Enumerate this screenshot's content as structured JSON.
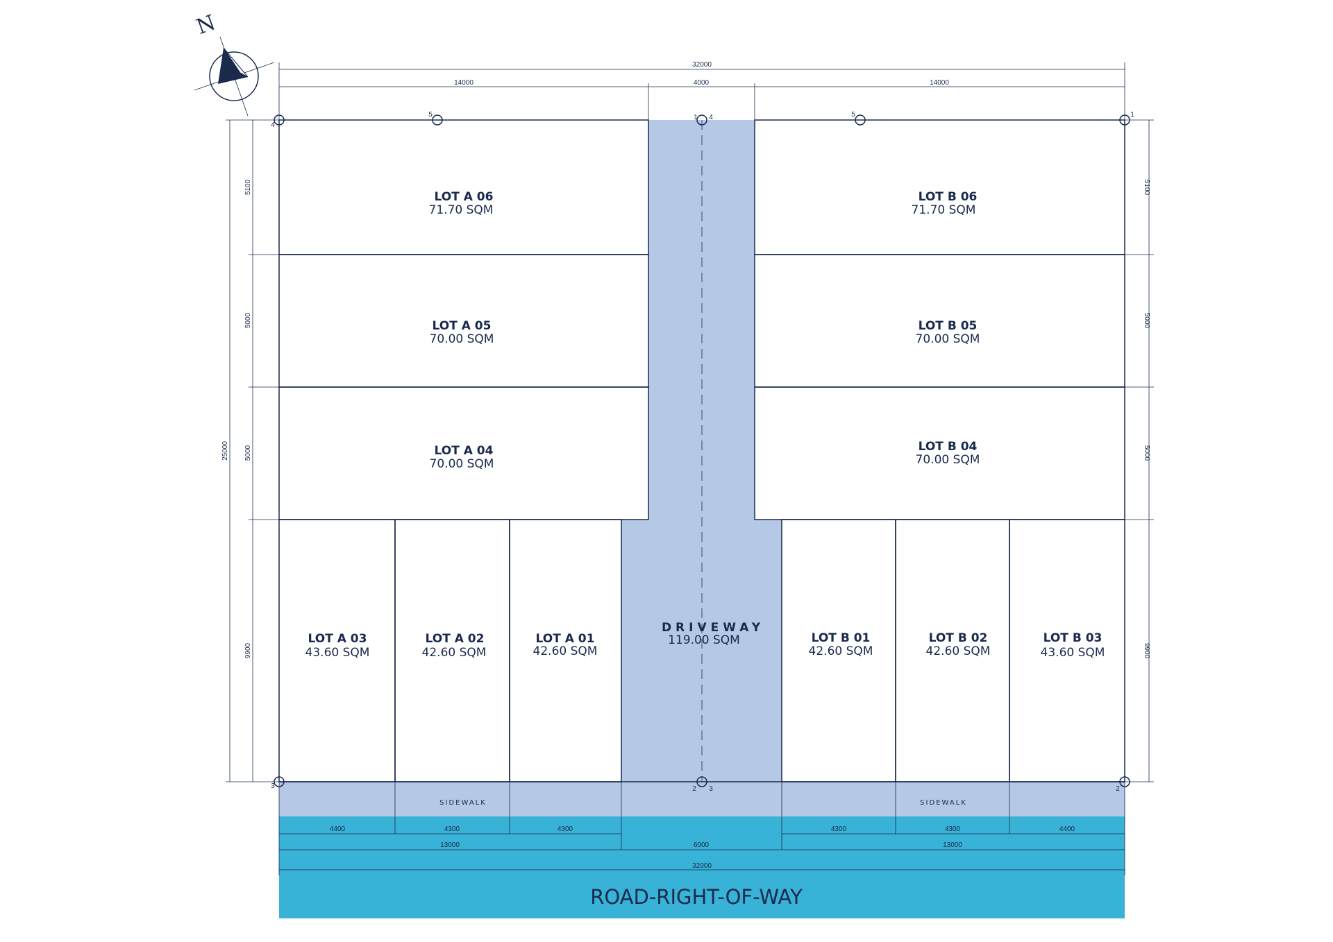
{
  "north_label": "N",
  "lots": [
    {
      "id": "a06",
      "name": "LOT A 06",
      "area": "71.70 SQM"
    },
    {
      "id": "a05",
      "name": "LOT A 05",
      "area": "70.00 SQM"
    },
    {
      "id": "a04",
      "name": "LOT A 04",
      "area": "70.00 SQM"
    },
    {
      "id": "a03",
      "name": "LOT A 03",
      "area": "43.60 SQM"
    },
    {
      "id": "a02",
      "name": "LOT A 02",
      "area": "42.60 SQM"
    },
    {
      "id": "a01",
      "name": "LOT A 01",
      "area": "42.60 SQM"
    },
    {
      "id": "b06",
      "name": "LOT B 06",
      "area": "71.70 SQM"
    },
    {
      "id": "b05",
      "name": "LOT B 05",
      "area": "70.00 SQM"
    },
    {
      "id": "b04",
      "name": "LOT B 04",
      "area": "70.00 SQM"
    },
    {
      "id": "b01",
      "name": "LOT B 01",
      "area": "42.60 SQM"
    },
    {
      "id": "b02",
      "name": "LOT B 02",
      "area": "42.60 SQM"
    },
    {
      "id": "b03",
      "name": "LOT B 03",
      "area": "43.60 SQM"
    }
  ],
  "driveway": {
    "label": "DRIVEWAY",
    "area": "119.00 SQM"
  },
  "sidewalk_label": "SIDEWALK",
  "road_label": "ROAD-RIGHT-OF-WAY",
  "dimensions": {
    "top_total": "32000",
    "top_left": "14000",
    "top_mid": "4000",
    "top_right": "14000",
    "left_total": "25000",
    "side_rows": [
      "5100",
      "5000",
      "5000",
      "9900"
    ],
    "bottom_lots_left": [
      "4400",
      "4300",
      "4300"
    ],
    "bottom_lots_right": [
      "4300",
      "4300",
      "4400"
    ],
    "bottom_groups": [
      "13000",
      "6000",
      "13000"
    ],
    "bottom_total": "32000"
  },
  "corner_marks": {
    "top_left": "4",
    "top_left_mid": "5",
    "top_center_left": "1",
    "top_center_right": "4",
    "top_right_mid": "5",
    "top_right": "1",
    "bottom_left": "3",
    "bottom_center_left": "2",
    "bottom_center_right": "3",
    "bottom_right": "2"
  },
  "colors": {
    "line": "#1a2a4d",
    "driveway": "#b5c8e6",
    "sidewalk": "#b5c8e6",
    "road": "#38b2d6"
  }
}
